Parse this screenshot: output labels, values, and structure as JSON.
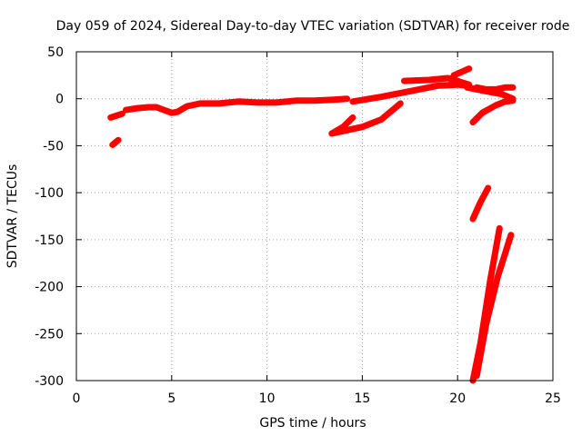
{
  "chart_data": {
    "type": "scatter",
    "title": "Day 059 of 2024, Sidereal Day-to-day VTEC variation (SDTVAR) for receiver rode",
    "xlabel": "GPS time / hours",
    "ylabel": "SDTVAR / TECUs",
    "xlim": [
      0,
      25
    ],
    "ylim": [
      -300,
      50
    ],
    "xticks": [
      0,
      5,
      10,
      15,
      20,
      25
    ],
    "yticks": [
      -300,
      -250,
      -200,
      -150,
      -100,
      -50,
      0,
      50
    ],
    "grid": true,
    "legend": "none",
    "color": "#ff0000",
    "series": [
      {
        "x": [
          1.8,
          2.1,
          2.4
        ],
        "y": [
          -20,
          -18,
          -16
        ]
      },
      {
        "x": [
          1.9,
          2.2
        ],
        "y": [
          -49,
          -44
        ]
      },
      {
        "x": [
          2.6,
          3.2,
          3.8,
          4.2,
          4.6,
          5.0,
          5.3,
          5.8,
          6.5,
          7.5,
          8.5,
          9.5,
          10.5,
          11.5,
          12.5,
          13.5,
          14.2
        ],
        "y": [
          -12,
          -10,
          -9,
          -9,
          -12,
          -15,
          -14,
          -8,
          -5,
          -5,
          -3,
          -4,
          -4,
          -2,
          -2,
          -1,
          0
        ]
      },
      {
        "x": [
          13.4,
          14.0,
          14.5
        ],
        "y": [
          -37,
          -30,
          -20
        ]
      },
      {
        "x": [
          13.4,
          15.0,
          16.0,
          17.0
        ],
        "y": [
          -37,
          -30,
          -22,
          -5
        ]
      },
      {
        "x": [
          14.5,
          16.0,
          17.5,
          19.0,
          20.0,
          20.5
        ],
        "y": [
          -3,
          2,
          8,
          14,
          15,
          14
        ]
      },
      {
        "x": [
          17.2,
          18.5,
          19.5,
          20.6
        ],
        "y": [
          19,
          20,
          22,
          15
        ]
      },
      {
        "x": [
          19.8,
          20.6
        ],
        "y": [
          25,
          32
        ]
      },
      {
        "x": [
          20.5,
          21.5,
          22.3,
          22.9
        ],
        "y": [
          12,
          8,
          5,
          0
        ]
      },
      {
        "x": [
          21.0,
          21.5,
          22.0,
          22.5,
          22.9
        ],
        "y": [
          12,
          10,
          10,
          12,
          12
        ]
      },
      {
        "x": [
          20.8,
          21.3,
          22.0,
          22.5,
          22.9
        ],
        "y": [
          -25,
          -15,
          -7,
          -3,
          -2
        ]
      },
      {
        "x": [
          20.8,
          21.2,
          21.6
        ],
        "y": [
          -128,
          -110,
          -95
        ]
      },
      {
        "x": [
          20.8,
          21.2,
          21.7,
          22.2
        ],
        "y": [
          -300,
          -260,
          -195,
          -138
        ]
      },
      {
        "x": [
          21.0,
          21.5,
          22.1,
          22.8
        ],
        "y": [
          -295,
          -240,
          -190,
          -145
        ]
      }
    ]
  }
}
